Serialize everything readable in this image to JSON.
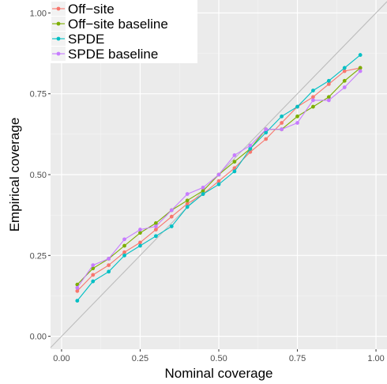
{
  "chart_data": {
    "type": "line",
    "xlabel": "Nominal coverage",
    "ylabel": "Empirical coverage",
    "xlim": [
      -0.035,
      1.035
    ],
    "ylim": [
      -0.04,
      1.04
    ],
    "x_ticks": [
      "0.00",
      "0.25",
      "0.50",
      "0.75",
      "1.00"
    ],
    "y_ticks": [
      "0.00",
      "0.25",
      "0.50",
      "0.75",
      "1.00"
    ],
    "grid": true,
    "background": "#ebebeb",
    "reference_line": {
      "slope": 1,
      "intercept": 0,
      "color": "#bdbdbd"
    },
    "legend_position": "top-left",
    "x": [
      0.05,
      0.1,
      0.15,
      0.2,
      0.25,
      0.3,
      0.35,
      0.4,
      0.45,
      0.5,
      0.55,
      0.6,
      0.65,
      0.7,
      0.75,
      0.8,
      0.85,
      0.9,
      0.95
    ],
    "series": [
      {
        "name": "Off−site",
        "color": "#f8766d",
        "values": [
          0.14,
          0.19,
          0.22,
          0.26,
          0.29,
          0.33,
          0.37,
          0.41,
          0.44,
          0.48,
          0.52,
          0.57,
          0.61,
          0.66,
          0.71,
          0.74,
          0.78,
          0.82,
          0.83
        ]
      },
      {
        "name": "Off−site baseline",
        "color": "#7cae00",
        "values": [
          0.16,
          0.21,
          0.24,
          0.28,
          0.32,
          0.35,
          0.39,
          0.42,
          0.45,
          0.5,
          0.54,
          0.58,
          0.64,
          0.64,
          0.68,
          0.71,
          0.74,
          0.79,
          0.83
        ]
      },
      {
        "name": "SPDE",
        "color": "#00bfc4",
        "values": [
          0.11,
          0.17,
          0.2,
          0.25,
          0.28,
          0.31,
          0.34,
          0.4,
          0.44,
          0.47,
          0.51,
          0.58,
          0.63,
          0.68,
          0.71,
          0.76,
          0.79,
          0.83,
          0.87
        ]
      },
      {
        "name": "SPDE baseline",
        "color": "#c77cff",
        "values": [
          0.15,
          0.22,
          0.24,
          0.3,
          0.33,
          0.34,
          0.39,
          0.44,
          0.46,
          0.5,
          0.56,
          0.59,
          0.64,
          0.64,
          0.66,
          0.73,
          0.73,
          0.77,
          0.82
        ]
      }
    ]
  }
}
